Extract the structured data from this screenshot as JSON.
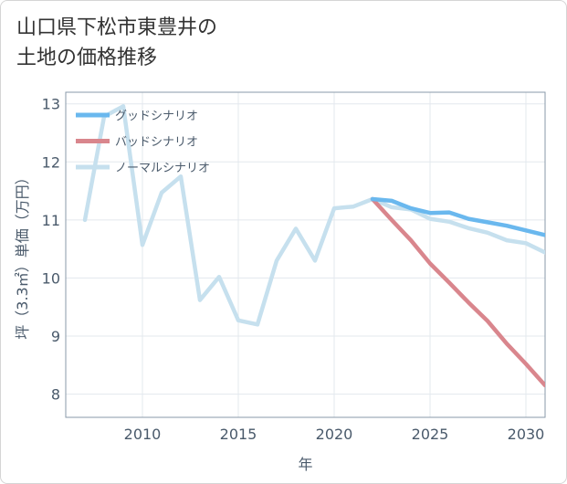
{
  "title_lines": [
    "山口県下松市東豊井の",
    "土地の価格推移"
  ],
  "chart_data": {
    "type": "line",
    "title": "山口県下松市東豊井の土地の価格推移",
    "xlabel": "年",
    "ylabel": "坪（3.3㎡）単価（万円）",
    "xlim": [
      2006,
      2031
    ],
    "ylim": [
      7.6,
      13.2
    ],
    "x_ticks": [
      2010,
      2015,
      2020,
      2025,
      2030
    ],
    "y_ticks": [
      8,
      9,
      10,
      11,
      12,
      13
    ],
    "grid": true,
    "legend_position": "top-left",
    "series": [
      {
        "name": "グッドシナリオ",
        "color": "#6ab8ee",
        "x": [
          2022,
          2023,
          2024,
          2025,
          2026,
          2027,
          2028,
          2029,
          2030,
          2031
        ],
        "y": [
          11.36,
          11.33,
          11.2,
          11.12,
          11.13,
          11.02,
          10.96,
          10.9,
          10.82,
          10.74
        ]
      },
      {
        "name": "バッドシナリオ",
        "color": "#d9868d",
        "x": [
          2022,
          2023,
          2024,
          2025,
          2026,
          2027,
          2028,
          2029,
          2030,
          2031
        ],
        "y": [
          11.36,
          11.0,
          10.65,
          10.25,
          9.92,
          9.58,
          9.26,
          8.87,
          8.52,
          8.15
        ]
      },
      {
        "name": "ノーマルシナリオ",
        "color": "#c6e0ee",
        "x": [
          2007,
          2008,
          2009,
          2010,
          2011,
          2012,
          2013,
          2014,
          2015,
          2016,
          2017,
          2018,
          2019,
          2020,
          2021,
          2022,
          2023,
          2024,
          2025,
          2026,
          2027,
          2028,
          2029,
          2030,
          2031
        ],
        "y": [
          11.0,
          12.78,
          12.96,
          10.57,
          11.47,
          11.75,
          9.62,
          10.02,
          9.27,
          9.2,
          10.3,
          10.85,
          10.3,
          11.2,
          11.23,
          11.36,
          11.22,
          11.18,
          11.02,
          10.97,
          10.86,
          10.78,
          10.65,
          10.6,
          10.44
        ]
      }
    ]
  }
}
